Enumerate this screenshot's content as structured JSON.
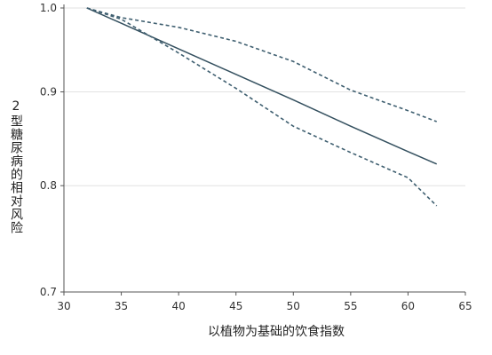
{
  "chart_data": {
    "type": "line",
    "x_label": "以植物为基础的饮食指数",
    "y_label": "2型糖尿病的相对风险",
    "x": [
      32,
      35,
      40,
      45,
      50,
      55,
      60,
      62.5
    ],
    "series": [
      {
        "color": "#34505f",
        "dashed": false,
        "values": [
          1.0,
          0.981,
          0.95,
          0.92,
          0.891,
          0.862,
          0.835,
          0.822
        ]
      },
      {
        "color": "#3f5f70",
        "dashed": true,
        "values": [
          1.0,
          0.988,
          0.976,
          0.959,
          0.935,
          0.902,
          0.879,
          0.867
        ]
      },
      {
        "color": "#3f5f70",
        "dashed": true,
        "values": [
          1.0,
          0.986,
          0.945,
          0.904,
          0.862,
          0.834,
          0.808,
          0.78
        ]
      }
    ],
    "xlim": [
      30,
      65
    ],
    "xticks": [
      30,
      35,
      40,
      45,
      50,
      55,
      60,
      65
    ],
    "ylim": [
      0.7,
      1.0
    ],
    "log_y": true,
    "yticks": [
      {
        "value": 0.7,
        "label": "0.7"
      },
      {
        "value": 0.8,
        "label": "0.8"
      },
      {
        "value": 0.9,
        "label": "0.9"
      },
      {
        "value": 1.0,
        "label": "1.0"
      }
    ],
    "grid": true
  }
}
